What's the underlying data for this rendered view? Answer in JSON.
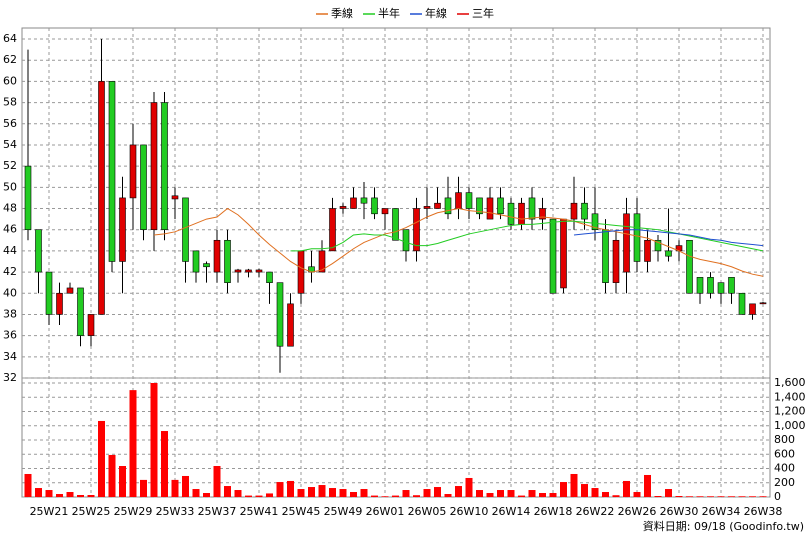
{
  "chart_data": {
    "type": "candlestick",
    "legend": "top",
    "up_color": "#e00000",
    "down_color": "#22cc22",
    "grid": true,
    "categories": [
      null,
      null,
      "25W21",
      null,
      null,
      null,
      "25W25",
      null,
      null,
      null,
      "25W29",
      null,
      null,
      null,
      "25W33",
      null,
      null,
      null,
      "25W37",
      null,
      null,
      null,
      "25W41",
      null,
      null,
      null,
      "25W45",
      null,
      null,
      null,
      "25W49",
      null,
      null,
      null,
      "26W01",
      null,
      null,
      null,
      "26W05",
      null,
      null,
      null,
      "26W10",
      null,
      null,
      null,
      "26W14",
      null,
      null,
      null,
      "26W18",
      null,
      null,
      null,
      "26W22",
      null,
      null,
      null,
      "26W26",
      null,
      null,
      null,
      "26W30",
      null,
      null,
      null,
      "26W34",
      null,
      null,
      null,
      "26W38"
    ],
    "open": [
      52,
      46,
      42,
      38,
      40,
      40.5,
      36,
      38,
      60,
      43,
      49,
      54,
      46,
      58,
      48.9,
      49,
      44,
      42.8,
      42,
      45,
      42,
      42,
      42,
      42,
      41,
      35,
      40,
      42.5,
      42,
      44,
      48,
      48,
      49,
      49,
      47.5,
      48,
      46,
      44,
      48,
      48,
      49,
      48,
      49.5,
      49,
      47,
      49,
      48.5,
      46.5,
      49,
      47,
      47,
      40.5,
      47,
      48.5,
      47.5,
      46,
      41,
      42,
      47.5,
      43,
      45,
      44,
      44,
      45,
      41.5,
      41.5,
      41,
      41.5,
      40,
      38,
      39
    ],
    "high": [
      63,
      46,
      42,
      41,
      41,
      40.5,
      38,
      64,
      60,
      51,
      56,
      54,
      59,
      59,
      50,
      49,
      44,
      43,
      46,
      46,
      42.3,
      42.3,
      42.3,
      42,
      41,
      40,
      44,
      44,
      45,
      49,
      48.5,
      50,
      50.5,
      50,
      48,
      48,
      46,
      49,
      50,
      50,
      51,
      51,
      50,
      49,
      50,
      50,
      49,
      49,
      50,
      49,
      47,
      47,
      51,
      50,
      50,
      47,
      46,
      49,
      49,
      46,
      45.5,
      48,
      45,
      45,
      41.5,
      42,
      41,
      41.5,
      40,
      39,
      39.2
    ],
    "low": [
      45,
      40,
      37,
      37,
      40,
      35,
      35,
      38,
      42,
      40,
      46,
      45,
      44,
      45,
      47,
      41,
      41,
      41,
      41,
      40,
      41,
      41.5,
      41.5,
      39,
      32.5,
      35,
      39,
      41,
      42,
      44,
      47.5,
      48,
      47,
      47,
      46,
      45,
      43,
      43,
      47,
      48,
      47,
      47,
      47,
      47,
      47,
      47,
      46,
      46,
      46,
      46,
      40,
      40,
      46,
      46,
      45,
      40,
      40,
      40,
      42,
      42,
      43,
      43,
      43,
      40,
      39,
      39.5,
      39,
      39,
      38,
      37.5,
      39
    ],
    "close": [
      46,
      42,
      38,
      40,
      40.5,
      36,
      38,
      60,
      43,
      49,
      54,
      46,
      58,
      46,
      49.2,
      43,
      42,
      42.5,
      45,
      41,
      42.2,
      42.2,
      42.2,
      41,
      35,
      39,
      44,
      42,
      44,
      48,
      48.2,
      49,
      48.5,
      47.5,
      48,
      45,
      44,
      48,
      48.2,
      48.5,
      47.5,
      49.5,
      48,
      47.5,
      49,
      47.5,
      46.5,
      48.5,
      47,
      48,
      40,
      47,
      48.5,
      47,
      46,
      41,
      45,
      47.5,
      43,
      45,
      44,
      43.5,
      44.5,
      40,
      40,
      40,
      40,
      40,
      38,
      39,
      39.1
    ],
    "ylim": [
      32,
      64
    ],
    "yticks": [
      32,
      34,
      36,
      38,
      40,
      42,
      44,
      46,
      48,
      50,
      52,
      54,
      56,
      58,
      60,
      62,
      64
    ],
    "series": [
      {
        "name": "季線",
        "color": "#e07020",
        "values": [
          null,
          null,
          null,
          null,
          null,
          null,
          null,
          null,
          null,
          null,
          null,
          null,
          45.5,
          45.6,
          45.8,
          46.2,
          46.6,
          47,
          47.2,
          48,
          47.4,
          46.5,
          45.5,
          44.6,
          43.8,
          43,
          42.4,
          42,
          42.2,
          42.8,
          43.5,
          44.2,
          44.8,
          45.2,
          45.6,
          45.8,
          46.2,
          46.7,
          47.2,
          47.6,
          47.8,
          48,
          47.8,
          47.7,
          47.6,
          47.4,
          47.2,
          47,
          47.1,
          47.2,
          47.1,
          47,
          46.8,
          46.5,
          46.2,
          46,
          45.8,
          45.6,
          45.4,
          45.2,
          44.8,
          44.4,
          44,
          43.5,
          43.2,
          43,
          42.8,
          42.5,
          42.1,
          41.8,
          41.6
        ]
      },
      {
        "name": "半年",
        "color": "#22cc22",
        "values": [
          null,
          null,
          null,
          null,
          null,
          null,
          null,
          null,
          null,
          null,
          null,
          null,
          null,
          null,
          null,
          null,
          null,
          null,
          null,
          null,
          null,
          null,
          null,
          null,
          null,
          44,
          44,
          44.2,
          44.2,
          44.3,
          44.8,
          45.5,
          45.6,
          45.5,
          45.5,
          45.2,
          44.8,
          44.5,
          44.5,
          44.7,
          45,
          45.3,
          45.6,
          45.8,
          46,
          46.2,
          46.4,
          46.5,
          46.5,
          46.6,
          46.7,
          46.8,
          46.8,
          46.7,
          46.6,
          46.5,
          46.4,
          46.3,
          46.2,
          46.1,
          46,
          45.8,
          45.6,
          45.4,
          45.2,
          45,
          44.8,
          44.6,
          44.4,
          44.2,
          44
        ]
      },
      {
        "name": "年線",
        "color": "#2050d0",
        "values": [
          null,
          null,
          null,
          null,
          null,
          null,
          null,
          null,
          null,
          null,
          null,
          null,
          null,
          null,
          null,
          null,
          null,
          null,
          null,
          null,
          null,
          null,
          null,
          null,
          null,
          null,
          null,
          null,
          null,
          null,
          null,
          null,
          null,
          null,
          null,
          null,
          null,
          null,
          null,
          null,
          null,
          null,
          null,
          null,
          null,
          null,
          null,
          null,
          null,
          null,
          null,
          null,
          45.5,
          45.6,
          45.7,
          45.8,
          45.9,
          46,
          46,
          45.9,
          45.8,
          45.7,
          45.6,
          45.5,
          45.3,
          45.1,
          45,
          44.8,
          44.7,
          44.6,
          44.5
        ]
      },
      {
        "name": "三年",
        "color": "#e00000",
        "values": [
          null,
          null,
          null,
          null,
          null,
          null,
          null,
          null,
          null,
          null,
          null,
          null,
          null,
          null,
          null,
          null,
          null,
          null,
          null,
          null,
          null,
          null,
          null,
          null,
          null,
          null,
          null,
          null,
          null,
          null,
          null,
          null,
          null,
          null,
          null,
          null,
          null,
          null,
          null,
          null,
          null,
          null,
          null,
          null,
          null,
          null,
          null,
          null,
          null,
          null,
          null,
          null,
          null,
          null,
          null,
          null,
          null,
          null,
          null,
          null,
          null,
          null,
          null,
          null,
          null,
          null,
          null,
          null,
          null,
          null,
          null
        ]
      }
    ],
    "volume": {
      "color": "#ff0000",
      "values": [
        323,
        126,
        98,
        42,
        70,
        28,
        28,
        1067,
        590,
        435,
        1500,
        240,
        1600,
        926,
        240,
        295,
        112,
        56,
        435,
        154,
        98,
        20,
        20,
        50,
        210,
        225,
        112,
        140,
        168,
        126,
        112,
        70,
        112,
        20,
        10,
        20,
        98,
        25,
        112,
        140,
        42,
        154,
        267,
        98,
        56,
        98,
        98,
        20,
        98,
        56,
        56,
        210,
        323,
        182,
        126,
        70,
        25,
        225,
        70,
        309,
        14,
        112,
        14,
        10,
        10,
        10,
        10,
        10,
        10,
        10,
        10
      ],
      "ylim": [
        0,
        1600
      ],
      "yticks": [
        0,
        200,
        400,
        600,
        800,
        {
          "value": 1000,
          "label": "1,000"
        },
        {
          "value": 1200,
          "label": "1,200"
        },
        {
          "value": 1400,
          "label": "1,400"
        },
        {
          "value": 1600,
          "label": "1,600"
        }
      ]
    },
    "footer": "資料日期: 09/18 (Goodinfo.tw)"
  }
}
